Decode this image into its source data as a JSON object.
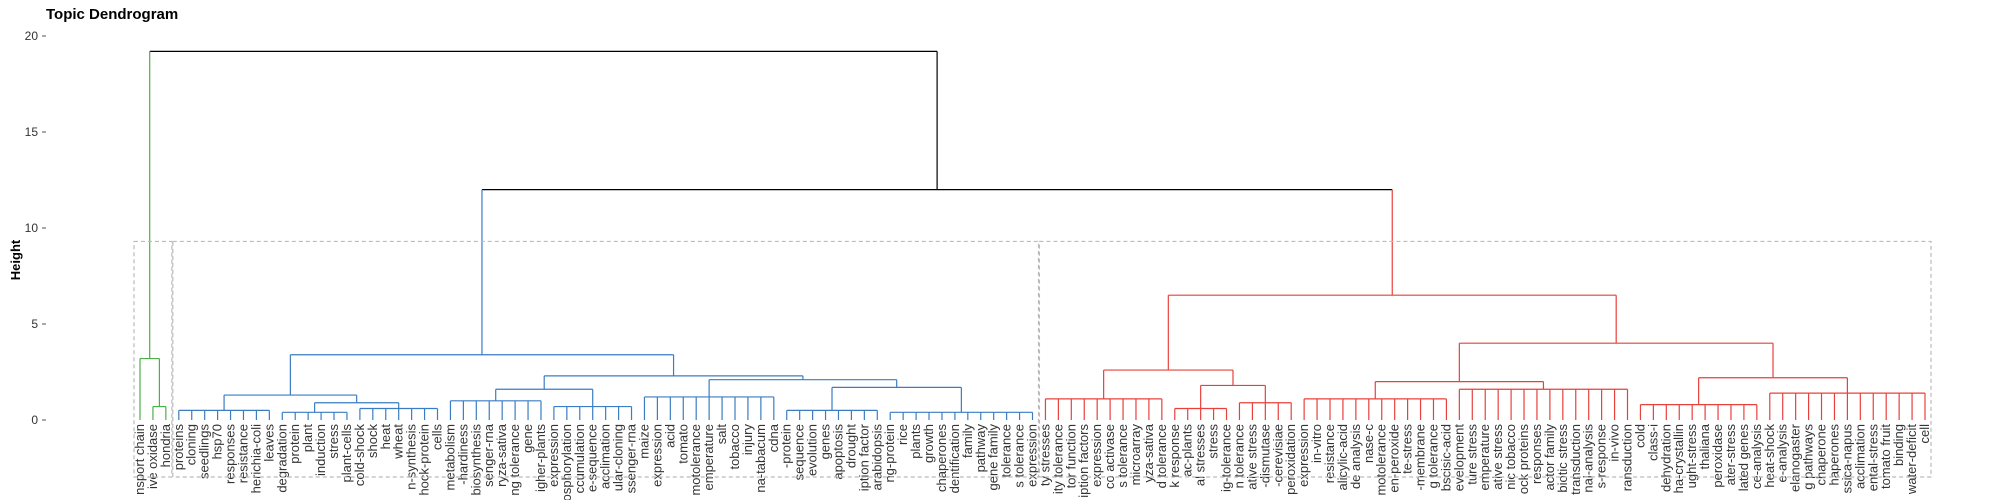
{
  "chart_data": {
    "type": "dendrogram",
    "title": "Topic Dendrogram",
    "y_label": "Height",
    "ylim": [
      0,
      20
    ],
    "yticks": [
      0,
      5,
      10,
      15,
      20
    ],
    "cut_height": 9.3,
    "tree": {
      "height": 19.2,
      "color": "#000000",
      "children": [
        {
          "height": 3.2,
          "color": "#4daf4a",
          "children": [
            "nsport chain",
            {
              "height": 0.7,
              "children": [
                "ive oxidase",
                "hondria"
              ]
            }
          ]
        },
        {
          "height": 12,
          "color": "#000000",
          "children": [
            {
              "height": 3.4,
              "color": "#3a7dc2",
              "children": [
                {
                  "height": 1.3,
                  "children": [
                    {
                      "height": 0.5,
                      "children": [
                        "proteins",
                        "cloning",
                        "seedlings",
                        "hsp70",
                        "responses",
                        "resistance",
                        "herichia-coli",
                        "leaves"
                      ]
                    },
                    {
                      "height": 0.9,
                      "children": [
                        {
                          "height": 0.4,
                          "children": [
                            "degradation",
                            "protein",
                            "plant",
                            "induction",
                            "stress",
                            "plant-cells"
                          ]
                        },
                        {
                          "height": 0.6,
                          "children": [
                            "cold-shock",
                            "shock",
                            "heat",
                            "wheat",
                            "n-synthesis",
                            "hock-protein",
                            "cells"
                          ]
                        }
                      ]
                    }
                  ]
                },
                {
                  "height": 2.3,
                  "children": [
                    {
                      "height": 1.6,
                      "children": [
                        {
                          "height": 1.0,
                          "children": [
                            "metabolism",
                            "-hardiness",
                            "biosynthesis",
                            "senger-rna",
                            "ryza-sativa",
                            "ng tolerance",
                            "gene",
                            "igher-plants"
                          ]
                        },
                        {
                          "height": 0.7,
                          "children": [
                            "expression",
                            "phosphorylation",
                            "ccumulation",
                            "e-sequence",
                            "acclimation",
                            "ular-cloning",
                            "ssenger-rna"
                          ]
                        }
                      ]
                    },
                    {
                      "height": 2.1,
                      "children": [
                        {
                          "height": 1.2,
                          "children": [
                            "maize",
                            "expression",
                            "acid",
                            "tomato",
                            "motolerance",
                            "emperature",
                            "salt",
                            "tobacco",
                            "injury",
                            "na-tabacum",
                            "cdna"
                          ]
                        },
                        {
                          "height": 1.7,
                          "children": [
                            {
                              "height": 0.5,
                              "children": [
                                "-protein",
                                "sequence",
                                "evolution",
                                "genes",
                                "apoptosis",
                                "drought",
                                "iption factor",
                                "arabidopsis"
                              ]
                            },
                            {
                              "height": 0.4,
                              "children": [
                                "ng-protein",
                                "rice",
                                "plants",
                                "growth",
                                "chaperones",
                                "dentification",
                                "family",
                                "pathway",
                                "gene family",
                                "tolerance",
                                "s tolerance",
                                "expression"
                              ]
                            }
                          ]
                        }
                      ]
                    }
                  ]
                }
              ]
            },
            {
              "height": 6.5,
              "color": "#e8413c",
              "children": [
                {
                  "height": 2.6,
                  "children": [
                    {
                      "height": 1.1,
                      "children": [
                        "ty stresses",
                        "ity tolerance",
                        "tor function",
                        "iption factors",
                        "expression",
                        "co activase",
                        "s tolerance",
                        "microarray",
                        "yza-sativa",
                        "d tolerance"
                      ]
                    },
                    {
                      "height": 1.8,
                      "children": [
                        {
                          "height": 0.6,
                          "children": [
                            "k response",
                            "ac-plants",
                            "al stresses",
                            "stress",
                            "ig-tolerance"
                          ]
                        },
                        {
                          "height": 0.9,
                          "children": [
                            "n tolerance",
                            "ative stress",
                            "-dismutase",
                            "-cerevisiae",
                            "peroxidation"
                          ]
                        }
                      ]
                    }
                  ]
                },
                {
                  "height": 4.0,
                  "children": [
                    {
                      "height": 2.0,
                      "children": [
                        {
                          "height": 1.1,
                          "children": [
                            "expression",
                            "in-vitro",
                            "resistance",
                            "alicylic-acid",
                            "de analysis",
                            "nase-c",
                            "motolerance",
                            "en-peroxide",
                            "te-stress",
                            "-membrane",
                            "g tolerance",
                            "bscisic-acid"
                          ]
                        },
                        {
                          "height": 1.6,
                          "children": [
                            "evelopment",
                            "ture stress",
                            "emperature",
                            "ative stress",
                            "nic tobacco",
                            "ock proteins",
                            "responses",
                            "actor family",
                            "biotic stress",
                            "transduction",
                            "nal-analysis",
                            "s-response",
                            "in-vivo",
                            "ransduction"
                          ]
                        }
                      ]
                    },
                    {
                      "height": 2.2,
                      "children": [
                        {
                          "height": 0.8,
                          "children": [
                            "cold",
                            "class-i",
                            "dehydration",
                            "ha-crystallin",
                            "ught-stress",
                            "thaliana",
                            "peroxidase",
                            "ater-stress",
                            "lated genes",
                            "ce-analysis"
                          ]
                        },
                        {
                          "height": 1.4,
                          "children": [
                            "heat-shock",
                            "e-analysis",
                            "elanogaster",
                            "g pathways",
                            "chaperone",
                            "haperones",
                            "ssica-napus",
                            "acclimation",
                            "ental-stress",
                            "tomato fruit",
                            "binding",
                            "water-deficit",
                            "cell"
                          ]
                        }
                      ]
                    }
                  ]
                }
              ]
            }
          ]
        }
      ]
    }
  }
}
